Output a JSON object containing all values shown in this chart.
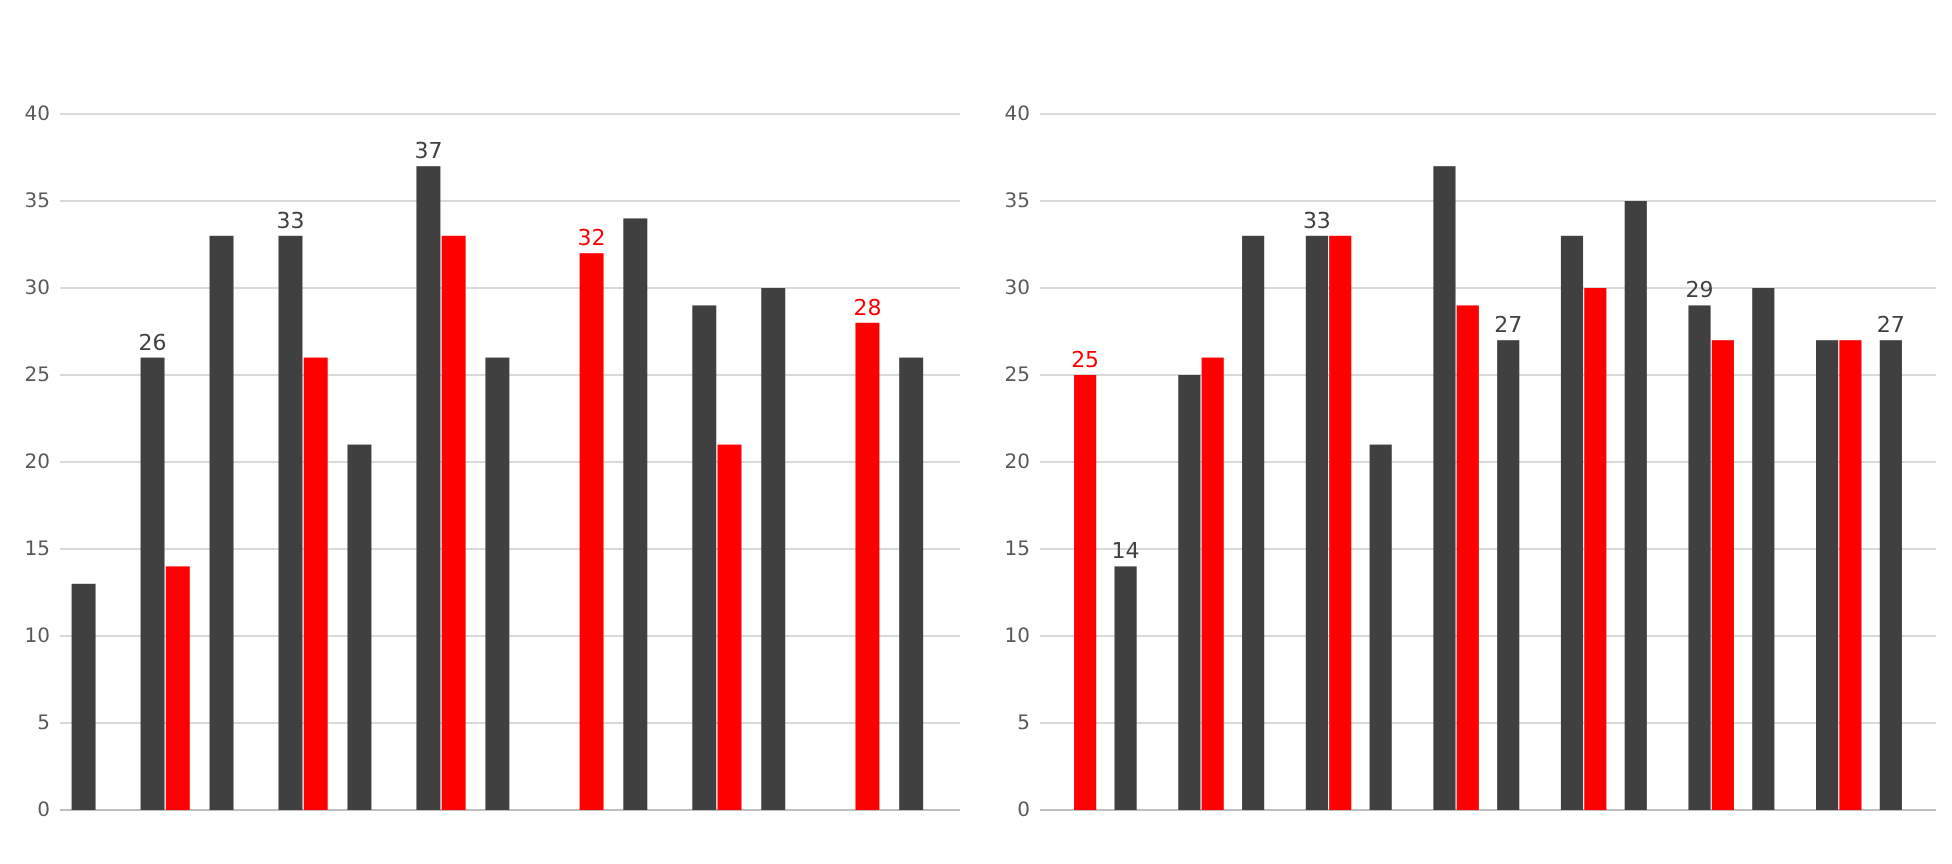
{
  "chart_data": [
    {
      "type": "bar",
      "categories": [
        null,
        null,
        null,
        null,
        null,
        null,
        null,
        null,
        null,
        null,
        null,
        null,
        null
      ],
      "ylim": [
        0,
        40
      ],
      "yticks": [
        0,
        5,
        10,
        15,
        20,
        25,
        30,
        35,
        40
      ],
      "grid": "y",
      "series": [
        {
          "color": "#404040",
          "values": [
            13,
            26,
            33,
            33,
            21,
            37,
            26,
            null,
            34,
            29,
            30,
            null,
            26
          ],
          "value_labels": [
            null,
            "26",
            null,
            "33",
            null,
            "37",
            null,
            null,
            null,
            null,
            null,
            null,
            null
          ]
        },
        {
          "color": "#ff0000",
          "values": [
            null,
            14,
            null,
            26,
            null,
            33,
            null,
            32,
            null,
            21,
            null,
            28,
            null
          ],
          "value_labels": [
            null,
            null,
            null,
            null,
            null,
            null,
            null,
            "32",
            null,
            null,
            null,
            "28",
            null
          ]
        }
      ]
    },
    {
      "type": "bar",
      "categories": [
        null,
        null,
        null,
        null,
        null,
        null,
        null,
        null,
        null,
        null,
        null,
        null,
        null,
        null
      ],
      "ylim": [
        0,
        40
      ],
      "yticks": [
        0,
        5,
        10,
        15,
        20,
        25,
        30,
        35,
        40
      ],
      "grid": "y",
      "series": [
        {
          "color": "#404040",
          "values": [
            null,
            14,
            25,
            33,
            33,
            21,
            37,
            27,
            33,
            35,
            29,
            30,
            27,
            27
          ],
          "value_labels": [
            null,
            "14",
            null,
            null,
            "33",
            null,
            null,
            "27",
            null,
            null,
            "29",
            null,
            null,
            "27"
          ]
        },
        {
          "color": "#ff0000",
          "values": [
            25,
            null,
            26,
            null,
            33,
            null,
            29,
            null,
            30,
            null,
            27,
            null,
            27,
            null
          ],
          "value_labels": [
            "25",
            null,
            null,
            null,
            null,
            null,
            null,
            null,
            null,
            null,
            null,
            null,
            null,
            null
          ]
        }
      ]
    }
  ]
}
